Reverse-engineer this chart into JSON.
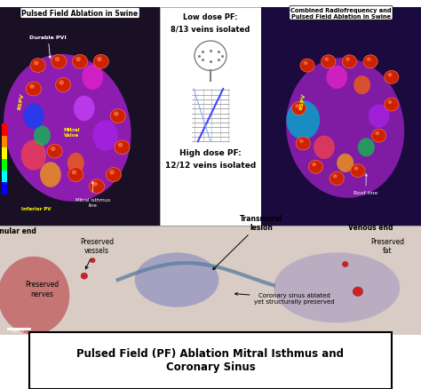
{
  "title": "Pulsed Field (PF) Ablation Mitral Isthmus and\nCoronary Sinus",
  "title_fontsize": 11,
  "title_fontweight": "bold",
  "bg_color": "#ffffff",
  "panel_left_label": "Pulsed Field Ablation in Swine",
  "panel_right_label": "Combined Radiofrequency and\nPulsed Field Ablation in Swine",
  "middle_top_label1": "Low dose PF:",
  "middle_top_label2": "8/13 veins isolated",
  "middle_bottom_label1": "High dose PF:",
  "middle_bottom_label2": "12/12 veins isolated",
  "left_panel_color": "#1a1025",
  "right_panel_color": "#1a0a3e",
  "bottom_panel_color": "#d8ccc5",
  "catheter_color": "#888888"
}
